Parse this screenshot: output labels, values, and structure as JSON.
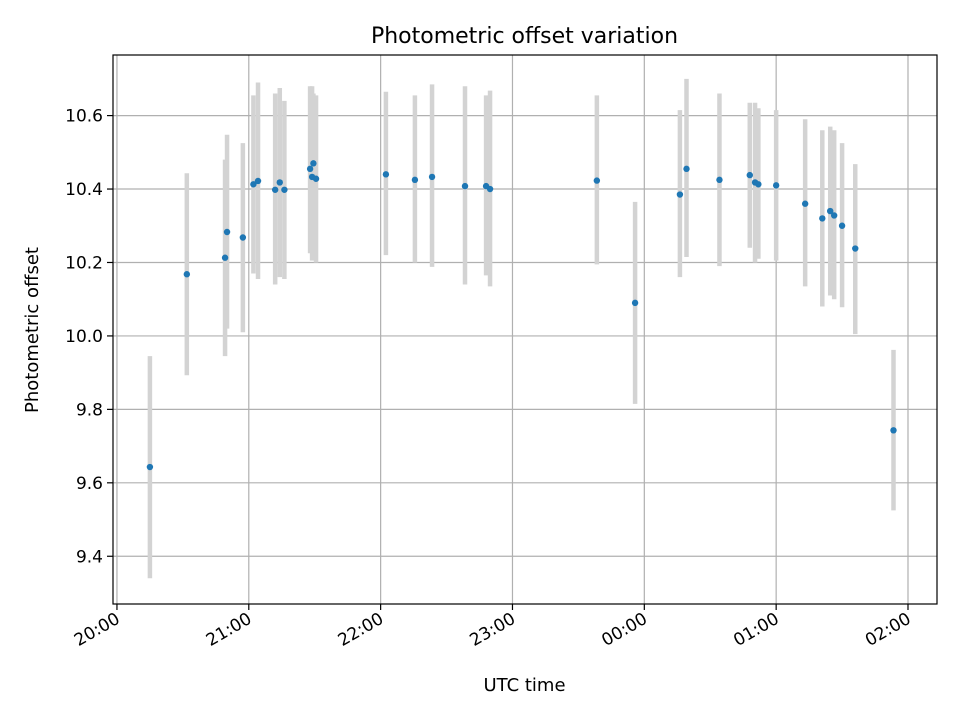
{
  "chart_data": {
    "type": "scatter",
    "title": "Photometric offset variation",
    "xlabel": "UTC time",
    "ylabel": "Photometric offset",
    "x_unit": "hours since 20:00 UTC",
    "xlim": [
      -0.03,
      6.22
    ],
    "ylim": [
      9.27,
      10.765
    ],
    "x_ticks": [
      {
        "value": 0,
        "label": "20:00"
      },
      {
        "value": 1,
        "label": "21:00"
      },
      {
        "value": 2,
        "label": "22:00"
      },
      {
        "value": 3,
        "label": "23:00"
      },
      {
        "value": 4,
        "label": "00:00"
      },
      {
        "value": 5,
        "label": "01:00"
      },
      {
        "value": 6,
        "label": "02:00"
      }
    ],
    "y_ticks": [
      9.4,
      9.6,
      9.8,
      10.0,
      10.2,
      10.4,
      10.6
    ],
    "grid": true,
    "marker_color": "#1f77b4",
    "errorbar_color": "#d3d3d3",
    "points": [
      {
        "x": 0.25,
        "y": 9.643,
        "lo": 9.34,
        "hi": 9.945
      },
      {
        "x": 0.53,
        "y": 10.168,
        "lo": 9.893,
        "hi": 10.443
      },
      {
        "x": 0.82,
        "y": 10.213,
        "lo": 9.945,
        "hi": 10.48
      },
      {
        "x": 0.835,
        "y": 10.283,
        "lo": 10.02,
        "hi": 10.548
      },
      {
        "x": 0.955,
        "y": 10.268,
        "lo": 10.01,
        "hi": 10.525
      },
      {
        "x": 1.035,
        "y": 10.413,
        "lo": 10.17,
        "hi": 10.655
      },
      {
        "x": 1.07,
        "y": 10.422,
        "lo": 10.155,
        "hi": 10.69
      },
      {
        "x": 1.2,
        "y": 10.398,
        "lo": 10.14,
        "hi": 10.66
      },
      {
        "x": 1.235,
        "y": 10.418,
        "lo": 10.16,
        "hi": 10.675
      },
      {
        "x": 1.27,
        "y": 10.398,
        "lo": 10.155,
        "hi": 10.64
      },
      {
        "x": 1.465,
        "y": 10.455,
        "lo": 10.225,
        "hi": 10.68
      },
      {
        "x": 1.48,
        "y": 10.433,
        "lo": 10.205,
        "hi": 10.68
      },
      {
        "x": 1.49,
        "y": 10.47,
        "lo": 10.25,
        "hi": 10.66
      },
      {
        "x": 1.51,
        "y": 10.428,
        "lo": 10.2,
        "hi": 10.655
      },
      {
        "x": 2.04,
        "y": 10.44,
        "lo": 10.22,
        "hi": 10.665
      },
      {
        "x": 2.26,
        "y": 10.425,
        "lo": 10.2,
        "hi": 10.655
      },
      {
        "x": 2.39,
        "y": 10.433,
        "lo": 10.188,
        "hi": 10.685
      },
      {
        "x": 2.64,
        "y": 10.408,
        "lo": 10.14,
        "hi": 10.68
      },
      {
        "x": 2.8,
        "y": 10.408,
        "lo": 10.165,
        "hi": 10.655
      },
      {
        "x": 2.83,
        "y": 10.4,
        "lo": 10.135,
        "hi": 10.668
      },
      {
        "x": 3.64,
        "y": 10.423,
        "lo": 10.195,
        "hi": 10.655
      },
      {
        "x": 3.93,
        "y": 10.09,
        "lo": 9.815,
        "hi": 10.365
      },
      {
        "x": 4.27,
        "y": 10.385,
        "lo": 10.16,
        "hi": 10.615
      },
      {
        "x": 4.32,
        "y": 10.455,
        "lo": 10.215,
        "hi": 10.7
      },
      {
        "x": 4.57,
        "y": 10.425,
        "lo": 10.19,
        "hi": 10.66
      },
      {
        "x": 4.8,
        "y": 10.438,
        "lo": 10.24,
        "hi": 10.635
      },
      {
        "x": 4.84,
        "y": 10.418,
        "lo": 10.2,
        "hi": 10.635
      },
      {
        "x": 4.865,
        "y": 10.413,
        "lo": 10.21,
        "hi": 10.62
      },
      {
        "x": 5.0,
        "y": 10.41,
        "lo": 10.205,
        "hi": 10.615
      },
      {
        "x": 5.22,
        "y": 10.36,
        "lo": 10.135,
        "hi": 10.59
      },
      {
        "x": 5.35,
        "y": 10.32,
        "lo": 10.08,
        "hi": 10.56
      },
      {
        "x": 5.41,
        "y": 10.34,
        "lo": 10.11,
        "hi": 10.57
      },
      {
        "x": 5.44,
        "y": 10.328,
        "lo": 10.1,
        "hi": 10.56
      },
      {
        "x": 5.5,
        "y": 10.3,
        "lo": 10.078,
        "hi": 10.525
      },
      {
        "x": 5.6,
        "y": 10.238,
        "lo": 10.005,
        "hi": 10.468
      },
      {
        "x": 5.89,
        "y": 9.743,
        "lo": 9.525,
        "hi": 9.962
      }
    ]
  }
}
